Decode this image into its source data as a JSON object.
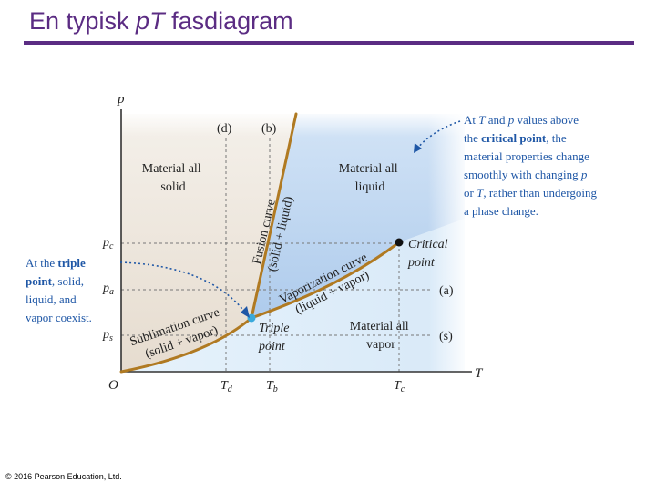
{
  "slide": {
    "title_pre": "En typisk ",
    "title_it": "pT",
    "title_post": " fasdiagram",
    "copyright": "© 2016 Pearson Education, Ltd."
  },
  "axes": {
    "p": "p",
    "T": "T",
    "origin": "O",
    "pc": "p",
    "pc_sub": "c",
    "pa": "p",
    "pa_sub": "a",
    "ps": "p",
    "ps_sub": "s",
    "Td": "T",
    "Td_sub": "d",
    "Tb": "T",
    "Tb_sub": "b",
    "Tc": "T",
    "Tc_sub": "c"
  },
  "lines": {
    "d": "(d)",
    "b": "(b)",
    "a": "(a)",
    "s": "(s)"
  },
  "regions": {
    "solid": [
      "Material all",
      "solid"
    ],
    "liquid": [
      "Material all",
      "liquid"
    ],
    "vapor": [
      "Material all",
      "vapor"
    ]
  },
  "curves": {
    "fusion": [
      "Fusion curve",
      "(solid + liquid)"
    ],
    "vaporization": [
      "Vaporization curve",
      "(liquid + vapor)"
    ],
    "sublimation": [
      "Sublimation curve",
      "(solid + vapor)"
    ]
  },
  "points": {
    "critical": [
      "Critical",
      "point"
    ],
    "triple": [
      "Triple",
      "point"
    ]
  },
  "annotations": {
    "critical_note": [
      {
        "pre": "At ",
        "b": "",
        "it1": "T",
        "mid": " and ",
        "it2": "p",
        "post": " values above"
      },
      {
        "pre": "the ",
        "b": "critical point",
        "post": ", the"
      },
      {
        "pre": "material properties change",
        "b": "",
        "post": ""
      },
      {
        "pre": "smoothly with changing ",
        "it": "p",
        "post": ""
      },
      {
        "pre": "or ",
        "it": "T",
        "post": ", rather than undergoing"
      },
      {
        "pre": "a phase change.",
        "b": "",
        "post": ""
      }
    ],
    "triple_note": [
      {
        "pre": "At the ",
        "b": "triple",
        "post": ""
      },
      {
        "pre": "",
        "b": "point",
        "post": ", solid,"
      },
      {
        "pre": "liquid, and",
        "b": "",
        "post": ""
      },
      {
        "pre": "vapor coexist.",
        "b": "",
        "post": ""
      }
    ]
  },
  "colors": {
    "title": "#5b2c83",
    "curve": "#b07a22",
    "annotation": "#1f57a6",
    "solid_region": "#e9e0d6",
    "liquid_region": "#b9d3ef",
    "vapor_region": "#e4f1fb",
    "triple_point": "#39a9dc"
  }
}
